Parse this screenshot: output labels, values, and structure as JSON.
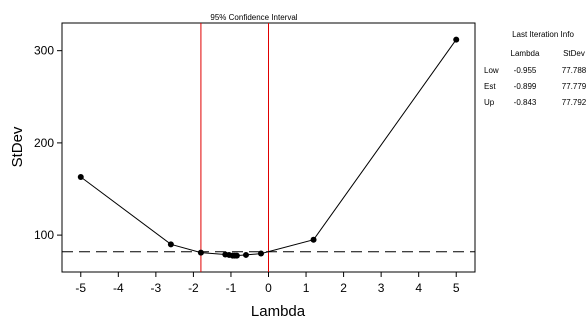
{
  "chart_data": {
    "type": "line",
    "title": "",
    "xlabel": "Lambda",
    "ylabel": "StDev",
    "xlim": [
      -5.5,
      5.5
    ],
    "ylim": [
      60,
      330
    ],
    "x_ticks": [
      -5,
      -4,
      -3,
      -2,
      -1,
      0,
      1,
      2,
      3,
      4,
      5
    ],
    "y_ticks": [
      100,
      200,
      300
    ],
    "grid": false,
    "series": [
      {
        "name": "",
        "x": [
          -5,
          -2.6,
          -1.8,
          -1.15,
          -1.05,
          -0.955,
          -0.899,
          -0.843,
          -0.6,
          -0.2,
          1.2,
          5
        ],
        "y": [
          163,
          90,
          81,
          79,
          78.5,
          77.788,
          77.779,
          77.792,
          78.5,
          80,
          95,
          312
        ]
      }
    ],
    "reference_line": {
      "y": 82,
      "style": "dashed"
    },
    "confidence_interval": {
      "label": "95% Confidence Interval",
      "lines_x": [
        -1.8,
        0
      ]
    },
    "info_table": {
      "title": "Last Iteration Info",
      "headers": [
        "",
        "Lambda",
        "StDev"
      ],
      "rows": [
        {
          "label": "Low",
          "lambda": "-0.955",
          "stdev": "77.788"
        },
        {
          "label": "Est",
          "lambda": "-0.899",
          "stdev": "77.779"
        },
        {
          "label": "Up",
          "lambda": "-0.843",
          "stdev": "77.792"
        }
      ]
    }
  }
}
